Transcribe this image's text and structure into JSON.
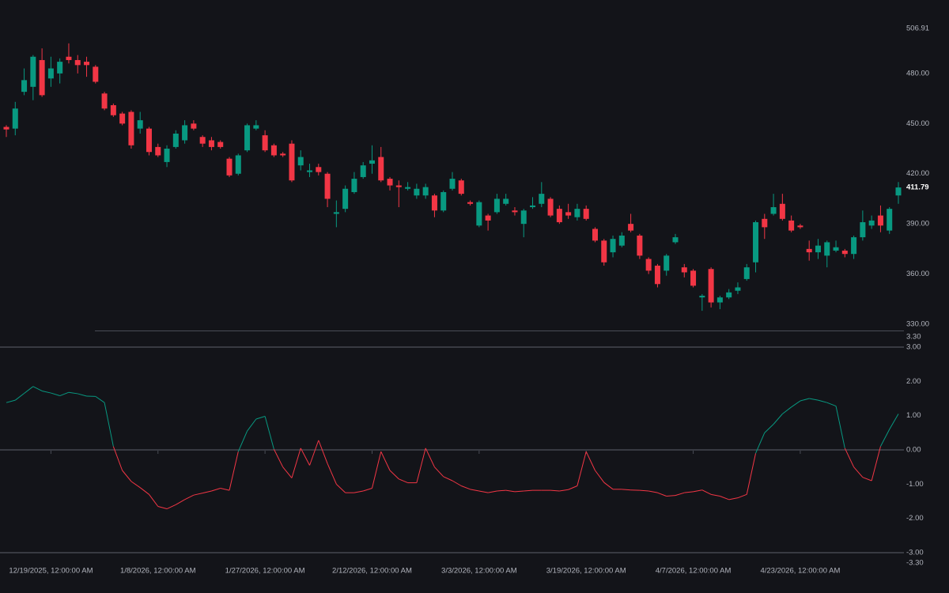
{
  "chart_data": [
    {
      "type": "candlestick",
      "categories": [
        null,
        null,
        null,
        null,
        null,
        "12/19/2025, 12:00:00 AM",
        null,
        null,
        null,
        null,
        null,
        null,
        null,
        null,
        null,
        null,
        null,
        "1/8/2026, 12:00:00 AM",
        null,
        null,
        null,
        null,
        null,
        null,
        null,
        null,
        null,
        null,
        null,
        "1/27/2026, 12:00:00 AM",
        null,
        null,
        null,
        null,
        null,
        null,
        null,
        null,
        null,
        null,
        null,
        "2/12/2026, 12:00:00 AM",
        null,
        null,
        null,
        null,
        null,
        null,
        null,
        null,
        null,
        null,
        null,
        "3/3/2026, 12:00:00 AM",
        null,
        null,
        null,
        null,
        null,
        null,
        null,
        null,
        null,
        null,
        null,
        "3/19/2026, 12:00:00 AM",
        null,
        null,
        null,
        null,
        null,
        null,
        null,
        null,
        null,
        null,
        null,
        "4/7/2026, 12:00:00 AM",
        null,
        null,
        null,
        null,
        null,
        null,
        null,
        null,
        null,
        null,
        null,
        "4/23/2026, 12:00:00 AM",
        null,
        null,
        null,
        null,
        null,
        null,
        null,
        null,
        null,
        null,
        null
      ],
      "open": [
        448,
        447,
        469,
        472,
        488,
        477,
        480,
        490,
        488,
        487,
        484,
        468,
        461,
        456,
        457,
        447,
        447,
        436,
        427,
        436,
        440,
        450,
        442,
        440,
        439,
        429,
        420,
        434,
        447,
        443,
        437,
        432,
        438,
        425,
        421,
        424,
        420,
        396,
        399,
        409,
        418,
        426,
        430,
        417,
        413,
        411,
        407,
        407,
        407,
        398,
        411,
        416,
        403,
        389,
        395,
        397,
        402,
        398,
        390,
        400,
        402,
        405,
        399,
        397,
        394,
        399,
        387,
        380,
        373,
        377,
        390,
        383,
        369,
        365,
        362,
        379,
        364,
        362,
        346,
        363,
        343,
        346,
        350,
        357,
        367,
        393,
        396,
        402,
        392,
        389,
        375,
        373,
        371,
        374,
        374,
        372,
        382,
        389,
        395,
        386,
        407
      ],
      "high": [
        449,
        463,
        483,
        491,
        495,
        490,
        489,
        498,
        491,
        490,
        485,
        469,
        462,
        457,
        458,
        457,
        448,
        438,
        437,
        446,
        452,
        452,
        443,
        442,
        440,
        430,
        432,
        450,
        452,
        446,
        438,
        433,
        440,
        434,
        426,
        426,
        421,
        404,
        413,
        421,
        427,
        437,
        436,
        418,
        416,
        415,
        414,
        414,
        408,
        410,
        421,
        417,
        404,
        404,
        396,
        408,
        408,
        400,
        399,
        406,
        415,
        406,
        401,
        402,
        402,
        401,
        388,
        381,
        383,
        385,
        396,
        384,
        370,
        366,
        372,
        384,
        366,
        363,
        348,
        364,
        347,
        351,
        355,
        366,
        392,
        396,
        408,
        408,
        395,
        390,
        380,
        381,
        380,
        380,
        375,
        383,
        398,
        395,
        401,
        400,
        415
      ],
      "low": [
        442,
        443,
        467,
        464,
        466,
        472,
        474,
        486,
        480,
        478,
        474,
        458,
        454,
        449,
        435,
        444,
        431,
        430,
        424,
        435,
        438,
        446,
        436,
        434,
        435,
        418,
        419,
        433,
        446,
        433,
        430,
        430,
        415,
        422,
        418,
        419,
        400,
        388,
        397,
        408,
        417,
        420,
        415,
        410,
        400,
        410,
        405,
        405,
        394,
        397,
        410,
        407,
        401,
        388,
        386,
        396,
        401,
        395,
        382,
        399,
        400,
        394,
        390,
        393,
        392,
        392,
        379,
        365,
        370,
        376,
        385,
        369,
        360,
        352,
        359,
        378,
        358,
        352,
        338,
        340,
        339,
        345,
        348,
        356,
        361,
        381,
        395,
        392,
        385,
        387,
        368,
        369,
        364,
        373,
        370,
        369,
        380,
        387,
        385,
        384,
        402
      ],
      "close": [
        446.5,
        459,
        476,
        490,
        467,
        483,
        487,
        488,
        485,
        485,
        475,
        459,
        455,
        450,
        437,
        452,
        433,
        431,
        435,
        444,
        449,
        447,
        438,
        436,
        436,
        419,
        431,
        449,
        449,
        434,
        431,
        431,
        416,
        430,
        422,
        421,
        405,
        397,
        411,
        417,
        425,
        428,
        416,
        413,
        412,
        412,
        411,
        412,
        398,
        409,
        417,
        408,
        402,
        403,
        392,
        405,
        405,
        397,
        398,
        401,
        408,
        395,
        391,
        395,
        399,
        393,
        380,
        367,
        381,
        383,
        386,
        371,
        362,
        354,
        371,
        382,
        361,
        353,
        347,
        343,
        346,
        349,
        352,
        364,
        391,
        388,
        400,
        393,
        386,
        388,
        373,
        377,
        379,
        376,
        372,
        382,
        391,
        392,
        389,
        399,
        411.79
      ],
      "up_color": "#089981",
      "down_color": "#f23645",
      "last_price": 411.79,
      "ylim": [
        330,
        506.91
      ],
      "yticks": [
        {
          "value": 330,
          "label": "330.00"
        },
        {
          "value": 360,
          "label": "360.00"
        },
        {
          "value": 390,
          "label": "390.00"
        },
        {
          "value": 420,
          "label": "420.00"
        },
        {
          "value": 450,
          "label": "450.00"
        },
        {
          "value": 480,
          "label": "480.00"
        },
        506.91
      ]
    },
    {
      "type": "line",
      "values": [
        1.38,
        1.45,
        1.65,
        1.85,
        1.72,
        1.66,
        1.58,
        1.68,
        1.64,
        1.57,
        1.56,
        1.38,
        0.1,
        -0.6,
        -0.92,
        -1.1,
        -1.3,
        -1.65,
        -1.72,
        -1.6,
        -1.45,
        -1.32,
        -1.26,
        -1.2,
        -1.12,
        -1.18,
        -0.05,
        0.55,
        0.9,
        0.98,
        0.02,
        -0.5,
        -0.82,
        0.05,
        -0.45,
        0.28,
        -0.4,
        -1.0,
        -1.25,
        -1.25,
        -1.2,
        -1.12,
        -0.05,
        -0.6,
        -0.85,
        -0.96,
        -0.96,
        0.05,
        -0.5,
        -0.78,
        -0.9,
        -1.05,
        -1.15,
        -1.2,
        -1.25,
        -1.2,
        -1.18,
        -1.22,
        -1.2,
        -1.18,
        -1.18,
        -1.18,
        -1.2,
        -1.16,
        -1.05,
        -0.05,
        -0.6,
        -0.95,
        -1.15,
        -1.15,
        -1.17,
        -1.18,
        -1.2,
        -1.25,
        -1.35,
        -1.33,
        -1.25,
        -1.22,
        -1.17,
        -1.3,
        -1.35,
        -1.45,
        -1.4,
        -1.3,
        -0.1,
        0.5,
        0.75,
        1.05,
        1.25,
        1.43,
        1.5,
        1.45,
        1.38,
        1.28,
        0.05,
        -0.5,
        -0.8,
        -0.9,
        0.1,
        0.6,
        1.05
      ],
      "up_color": "#089981",
      "down_color": "#f23645",
      "hlines": [
        3,
        0,
        -3
      ],
      "ylim": [
        -3.3,
        3.3
      ],
      "yticks": [
        {
          "value": -3.3,
          "label": "-3.30"
        },
        {
          "value": -3,
          "label": "-3.00"
        },
        {
          "value": -2,
          "label": "-2.00"
        },
        {
          "value": -1,
          "label": "-1.00"
        },
        {
          "value": 0,
          "label": "0.00"
        },
        {
          "value": 1,
          "label": "1.00"
        },
        {
          "value": 2,
          "label": "2.00"
        },
        {
          "value": 3,
          "label": "3.00"
        },
        {
          "value": 3.3,
          "label": "3.30"
        }
      ]
    }
  ]
}
